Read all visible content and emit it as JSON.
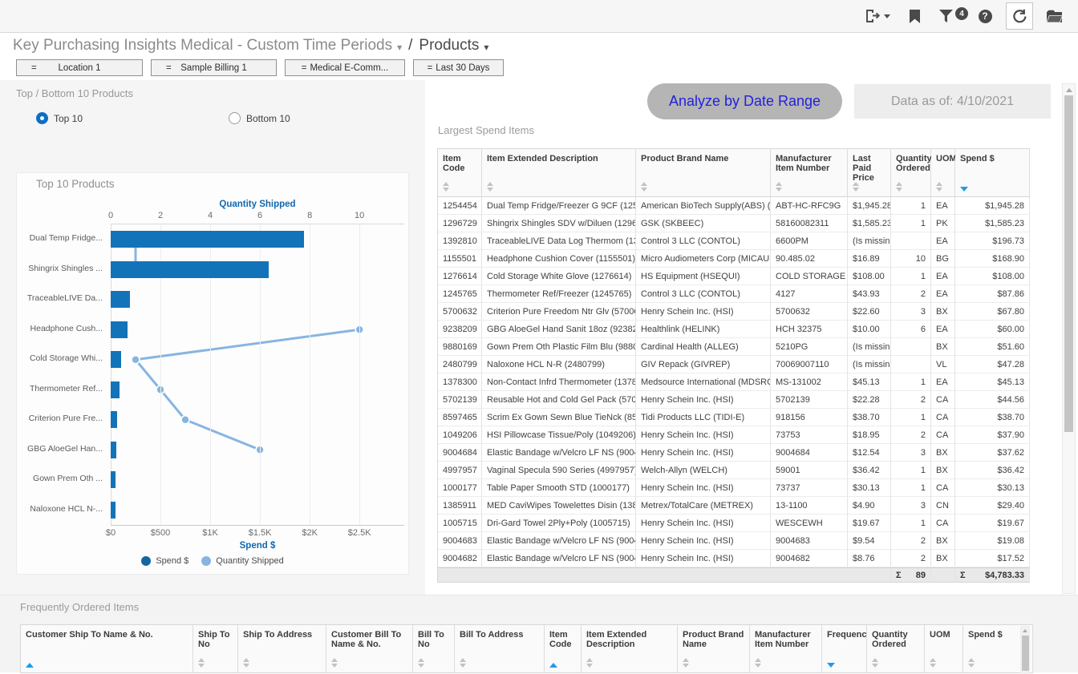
{
  "toolbar": {
    "filter_badge": "4",
    "help_glyph": "?",
    "icons": [
      "export",
      "bookmark",
      "filter",
      "help",
      "refresh",
      "portfolio"
    ]
  },
  "breadcrumb": {
    "title": "Key Purchasing Insights Medical - Custom Time Periods",
    "separator": "/",
    "page": "Products",
    "caret": "▾"
  },
  "filters": [
    {
      "op": "=",
      "label": "Location 1",
      "style": "spread"
    },
    {
      "op": "=",
      "label": "Sample Billing 1",
      "style": "spread"
    },
    {
      "op": "=",
      "label": "Medical E-Comm...",
      "style": "inline"
    },
    {
      "op": "=",
      "label": "Last 30 Days",
      "style": "inline"
    }
  ],
  "left_panel": {
    "title": "Top / Bottom 10 Products",
    "radios": [
      {
        "label": "Top 10",
        "selected": true
      },
      {
        "label": "Bottom 10",
        "selected": false
      }
    ]
  },
  "right_panel": {
    "analyze_button": "Analyze by Date Range",
    "data_as_of": "Data as of: 4/10/2021"
  },
  "chart_data": {
    "type": "bar",
    "orientation": "horizontal",
    "title": "Top 10 Products",
    "categories": [
      "Dual Temp Fridge...",
      "Shingrix Shingles ...",
      "TraceableLIVE Da...",
      "Headphone Cush...",
      "Cold Storage Whi...",
      "Thermometer Ref...",
      "Criterion Pure Fre...",
      "GBG AloeGel Han...",
      "Gown Prem Oth ...",
      "Naloxone HCL N-..."
    ],
    "series": [
      {
        "name": "Spend $",
        "type": "bar",
        "axis": "bottom",
        "values": [
          1945.28,
          1585.23,
          196.73,
          168.9,
          108.0,
          87.86,
          67.8,
          60.0,
          51.6,
          47.28
        ]
      },
      {
        "name": "Quantity Shipped",
        "type": "line",
        "axis": "top",
        "values": [
          1,
          1,
          null,
          10,
          1,
          2,
          3,
          6,
          null,
          null
        ]
      }
    ],
    "top_axis": {
      "label": "Quantity Shipped",
      "ticks": [
        0,
        2,
        4,
        6,
        8,
        10
      ],
      "max": 11.8
    },
    "bottom_axis": {
      "label": "Spend $",
      "ticks": [
        "$0",
        "$500",
        "$1K",
        "$1.5K",
        "$2K",
        "$2.5K"
      ],
      "tick_values": [
        0,
        500,
        1000,
        1500,
        2000,
        2500
      ],
      "max": 2950
    },
    "legend": [
      {
        "label": "Spend $",
        "color": "#15669f"
      },
      {
        "label": "Quantity Shipped",
        "color": "#87b5e1"
      }
    ],
    "colors": {
      "bar": "#1373b9",
      "line": "#87b5e1"
    },
    "grid": true,
    "legend_position": "bottom"
  },
  "spend_table": {
    "title": "Largest Spend Items",
    "columns": [
      {
        "label": "Item Code",
        "sort": "none"
      },
      {
        "label": "Item Extended Description",
        "sort": "none"
      },
      {
        "label": "Product Brand Name",
        "sort": "none"
      },
      {
        "label": "Manufacturer Item Number",
        "sort": "none"
      },
      {
        "label": "Last Paid Price",
        "sort": "none"
      },
      {
        "label": "Quantity Ordered",
        "sort": "none"
      },
      {
        "label": "UOM",
        "sort": "none"
      },
      {
        "label": "Spend $",
        "sort": "desc"
      }
    ],
    "rows": [
      [
        "1254454",
        "Dual Temp Fridge/Freezer G 9CF (1254...",
        "American BioTech Supply(ABS) (A...",
        "ABT-HC-RFC9G",
        "$1,945.28",
        "1",
        "EA",
        "$1,945.28"
      ],
      [
        "1296729",
        "Shingrix Shingles SDV w/Diluen (12967...",
        "GSK (SKBEEC)",
        "58160082311",
        "$1,585.23",
        "1",
        "PK",
        "$1,585.23"
      ],
      [
        "1392810",
        "TraceableLIVE Data Log Thermom (139...",
        "Control 3 LLC (CONTOL)",
        "6600PM",
        "(Is missin...",
        "",
        "EA",
        "$196.73"
      ],
      [
        "1155501",
        "Headphone Cushion Cover (1155501)",
        "Micro Audiometers Corp (MICAUD)",
        "90.485.02",
        "$16.89",
        "10",
        "BG",
        "$168.90"
      ],
      [
        "1276614",
        "Cold Storage White Glove (1276614)",
        "HS Equipment (HSEQUI)",
        "COLD STORAGE",
        "$108.00",
        "1",
        "EA",
        "$108.00"
      ],
      [
        "1245765",
        "Thermometer Ref/Freezer (1245765)",
        "Control 3 LLC (CONTOL)",
        "4127",
        "$43.93",
        "2",
        "EA",
        "$87.86"
      ],
      [
        "5700632",
        "Criterion Pure Freedom Ntr Glv (57006...",
        "Henry Schein Inc. (HSI)",
        "5700632",
        "$22.60",
        "3",
        "BX",
        "$67.80"
      ],
      [
        "9238209",
        "GBG AloeGel Hand Sanit 18oz (9238209)",
        "Healthlink (HELINK)",
        "HCH 32375",
        "$10.00",
        "6",
        "EA",
        "$60.00"
      ],
      [
        "9880169",
        "Gown Prem Oth Plastic Film Blu (9880...",
        "Cardinal Health (ALLEG)",
        "5210PG",
        "(Is missin...",
        "",
        "BX",
        "$51.60"
      ],
      [
        "2480799",
        "Naloxone HCL N-R (2480799)",
        "GIV Repack (GIVREP)",
        "70069007110",
        "(Is missin...",
        "",
        "VL",
        "$47.28"
      ],
      [
        "1378300",
        "Non-Contact Infrd Thermometer (1378...",
        "Medsource International (MDSRCE)",
        "MS-131002",
        "$45.13",
        "1",
        "EA",
        "$45.13"
      ],
      [
        "5702139",
        "Reusable Hot and Cold Gel Pack (5702...",
        "Henry Schein Inc. (HSI)",
        "5702139",
        "$22.28",
        "2",
        "CA",
        "$44.56"
      ],
      [
        "8597465",
        "Scrim Ex Gown Sewn Blue TieNck (859...",
        "Tidi Products LLC (TIDI-E)",
        "918156",
        "$38.70",
        "1",
        "CA",
        "$38.70"
      ],
      [
        "1049206",
        "HSI Pillowcase Tissue/Poly (1049206)",
        "Henry Schein Inc. (HSI)",
        "73753",
        "$18.95",
        "2",
        "CA",
        "$37.90"
      ],
      [
        "9004684",
        "Elastic Bandage w/Velcro LF NS (90046...",
        "Henry Schein Inc. (HSI)",
        "9004684",
        "$12.54",
        "3",
        "BX",
        "$37.62"
      ],
      [
        "4997957",
        "Vaginal Specula 590 Series (4997957)",
        "Welch-Allyn (WELCH)",
        "59001",
        "$36.42",
        "1",
        "BX",
        "$36.42"
      ],
      [
        "1000177",
        "Table Paper Smooth STD (1000177)",
        "Henry Schein Inc. (HSI)",
        "73737",
        "$30.13",
        "1",
        "CA",
        "$30.13"
      ],
      [
        "1385911",
        "MED CaviWipes Towelettes Disin (1385...",
        "Metrex/TotalCare (METREX)",
        "13-1100",
        "$4.90",
        "3",
        "CN",
        "$29.40"
      ],
      [
        "1005715",
        "Dri-Gard Towel 2Ply+Poly (1005715)",
        "Henry Schein Inc. (HSI)",
        "WESCEWH",
        "$19.67",
        "1",
        "CA",
        "$19.67"
      ],
      [
        "9004683",
        "Elastic Bandage w/Velcro LF NS (90046...",
        "Henry Schein Inc. (HSI)",
        "9004683",
        "$9.54",
        "2",
        "BX",
        "$19.08"
      ],
      [
        "9004682",
        "Elastic Bandage w/Velcro LF NS (90046...",
        "Henry Schein Inc. (HSI)",
        "9004682",
        "$8.76",
        "2",
        "BX",
        "$17.52"
      ]
    ],
    "totals": {
      "sigma": "Σ",
      "quantity": "89",
      "spend": "$4,783.33"
    }
  },
  "frequent_table": {
    "title": "Frequently Ordered Items",
    "columns": [
      {
        "label": "Customer Ship To Name & No.",
        "sort": "asc"
      },
      {
        "label": "Ship To No",
        "sort": "none"
      },
      {
        "label": "Ship To Address",
        "sort": "none"
      },
      {
        "label": "Customer Bill To Name & No.",
        "sort": "none"
      },
      {
        "label": "Bill To No",
        "sort": "none"
      },
      {
        "label": "Bill To Address",
        "sort": "none"
      },
      {
        "label": "Item Code",
        "sort": "asc"
      },
      {
        "label": "Item Extended Description",
        "sort": "none"
      },
      {
        "label": "Product Brand Name",
        "sort": "none"
      },
      {
        "label": "Manufacturer Item Number",
        "sort": "none"
      },
      {
        "label": "Frequency",
        "sort": "desc"
      },
      {
        "label": "Quantity Ordered",
        "sort": "none"
      },
      {
        "label": "UOM",
        "sort": "none"
      },
      {
        "label": "Spend $",
        "sort": "none"
      }
    ]
  }
}
